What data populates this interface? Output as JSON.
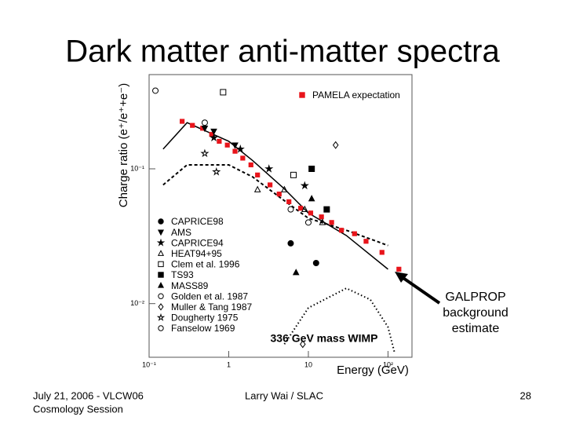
{
  "slide": {
    "title": "Dark matter anti-matter spectra",
    "footer_left": [
      "July 21, 2006 - VLCW06",
      "Cosmology Session"
    ],
    "footer_center": "Larry Wai / SLAC",
    "page_number": "28"
  },
  "chart_data": {
    "type": "scatter",
    "x_label": "Energy (GeV)",
    "y_label": "Charge ratio (e⁺/e⁺+e⁻)",
    "xscale": "log",
    "yscale": "log",
    "xlim": [
      0.1,
      200
    ],
    "ylim": [
      0.004,
      0.5
    ],
    "xticks": [
      {
        "value": 0.1,
        "label": "10⁻¹"
      },
      1,
      10,
      {
        "value": 100,
        "label": "10²"
      }
    ],
    "yticks": [
      {
        "value": 0.01,
        "label": "10⁻²"
      },
      {
        "value": 0.1,
        "label": "10⁻¹"
      }
    ],
    "annotations": [
      {
        "text": "336 GeV mass WIMP"
      },
      {
        "text": [
          "GALPROP",
          "background",
          "estimate"
        ]
      }
    ],
    "curves": [
      {
        "style": "solid",
        "x": [
          0.15,
          0.3,
          1,
          2,
          5,
          10,
          30,
          100
        ],
        "y": [
          0.14,
          0.22,
          0.16,
          0.115,
          0.071,
          0.047,
          0.032,
          0.018
        ]
      },
      {
        "style": "dashed",
        "x": [
          0.15,
          0.3,
          1,
          2,
          5,
          10,
          30,
          100
        ],
        "y": [
          0.076,
          0.107,
          0.107,
          0.087,
          0.058,
          0.043,
          0.035,
          0.027
        ]
      },
      {
        "style": "dotted",
        "x": [
          5,
          10,
          30,
          60,
          100,
          120
        ],
        "y": [
          0.005,
          0.0093,
          0.013,
          0.0107,
          0.0067,
          0.0044
        ]
      }
    ],
    "series": [
      {
        "name": "PAMELA expectation",
        "legend": "top-right",
        "color": "#e8141b",
        "marker": "square",
        "filled": true,
        "x": [
          0.26,
          0.35,
          0.47,
          0.61,
          0.76,
          0.96,
          1.2,
          1.5,
          1.9,
          2.3,
          3.3,
          4.3,
          5.7,
          8.0,
          10.7,
          14.6,
          19.6,
          26,
          38,
          53,
          84,
          137
        ],
        "values": [
          0.225,
          0.21,
          0.2,
          0.18,
          0.16,
          0.15,
          0.135,
          0.12,
          0.107,
          0.09,
          0.076,
          0.065,
          0.057,
          0.051,
          0.047,
          0.044,
          0.04,
          0.035,
          0.033,
          0.029,
          0.024,
          0.018
        ]
      },
      {
        "name": "CAPRICE98",
        "legend": "bottom-left",
        "color": "#000000",
        "marker": "circle",
        "filled": true,
        "x": [
          6,
          12.5
        ],
        "values": [
          0.028,
          0.02
        ]
      },
      {
        "name": "AMS",
        "legend": "bottom-left",
        "color": "#000000",
        "marker": "triangle-down",
        "filled": true,
        "x": [
          0.5,
          0.65,
          1.2
        ],
        "values": [
          0.2,
          0.19,
          0.15
        ]
      },
      {
        "name": "CAPRICE94",
        "legend": "bottom-left",
        "color": "#000000",
        "marker": "star",
        "filled": true,
        "x": [
          0.65,
          1.4,
          3.2,
          9
        ],
        "values": [
          0.17,
          0.14,
          0.1,
          0.075
        ]
      },
      {
        "name": "HEAT94+95",
        "legend": "bottom-left",
        "color": "#000000",
        "marker": "triangle",
        "filled": false,
        "x": [
          2.3,
          5,
          9,
          15
        ],
        "values": [
          0.07,
          0.07,
          0.05,
          0.04
        ]
      },
      {
        "name": "Clem et al. 1996",
        "legend": "bottom-left",
        "color": "#000000",
        "marker": "square",
        "filled": false,
        "x": [
          0.85,
          6.5
        ],
        "values": [
          0.37,
          0.09
        ]
      },
      {
        "name": "TS93",
        "legend": "bottom-left",
        "color": "#000000",
        "marker": "square",
        "filled": true,
        "x": [
          11,
          17
        ],
        "values": [
          0.1,
          0.05
        ]
      },
      {
        "name": "MASS89",
        "legend": "bottom-left",
        "color": "#000000",
        "marker": "triangle",
        "filled": true,
        "x": [
          7,
          11
        ],
        "values": [
          0.017,
          0.06
        ]
      },
      {
        "name": "Golden et al. 1987",
        "legend": "bottom-left",
        "color": "#000000",
        "marker": "circle",
        "filled": false,
        "x": [
          6,
          10
        ],
        "values": [
          0.05,
          0.04
        ]
      },
      {
        "name": "Muller & Tang 1987",
        "legend": "bottom-left",
        "color": "#000000",
        "marker": "diamond",
        "filled": false,
        "x": [
          8.5,
          22
        ],
        "values": [
          0.005,
          0.15
        ]
      },
      {
        "name": "Dougherty 1975",
        "legend": "bottom-left",
        "color": "#000000",
        "marker": "star",
        "filled": false,
        "x": [
          0.5,
          0.7
        ],
        "values": [
          0.13,
          0.095
        ]
      },
      {
        "name": "Fanselow 1969",
        "legend": "bottom-left",
        "color": "#000000",
        "marker": "circle",
        "filled": false,
        "x": [
          0.12,
          0.5
        ],
        "values": [
          0.38,
          0.22
        ]
      }
    ]
  }
}
